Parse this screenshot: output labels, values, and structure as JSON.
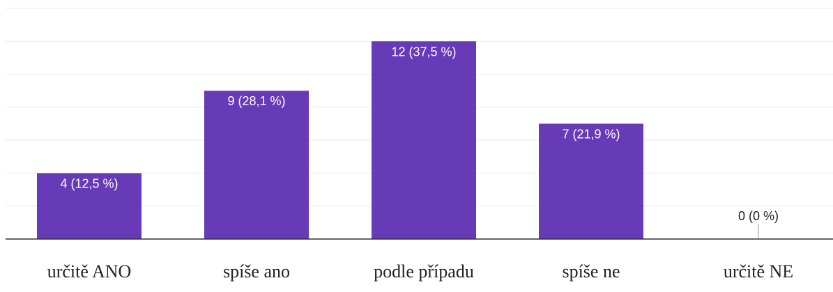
{
  "chart_data": {
    "type": "bar",
    "categories": [
      "určitě ANO",
      "spíše ano",
      "podle případu",
      "spíše ne",
      "určitě NE"
    ],
    "values": [
      4,
      9,
      12,
      7,
      0
    ],
    "data_labels": [
      "4 (12,5 %)",
      "9 (28,1 %)",
      "12 (37,5 %)",
      "7 (21,9 %)",
      "0 (0 %)"
    ],
    "ylim": [
      0,
      14
    ],
    "grid": true,
    "legend": "none",
    "title": "",
    "xlabel": "",
    "ylabel": ""
  },
  "colors": {
    "bar": "#673ab7",
    "label_inside": "#ffffff",
    "label_outside": "#222222",
    "grid": "#ececec",
    "axis": "#333333"
  }
}
